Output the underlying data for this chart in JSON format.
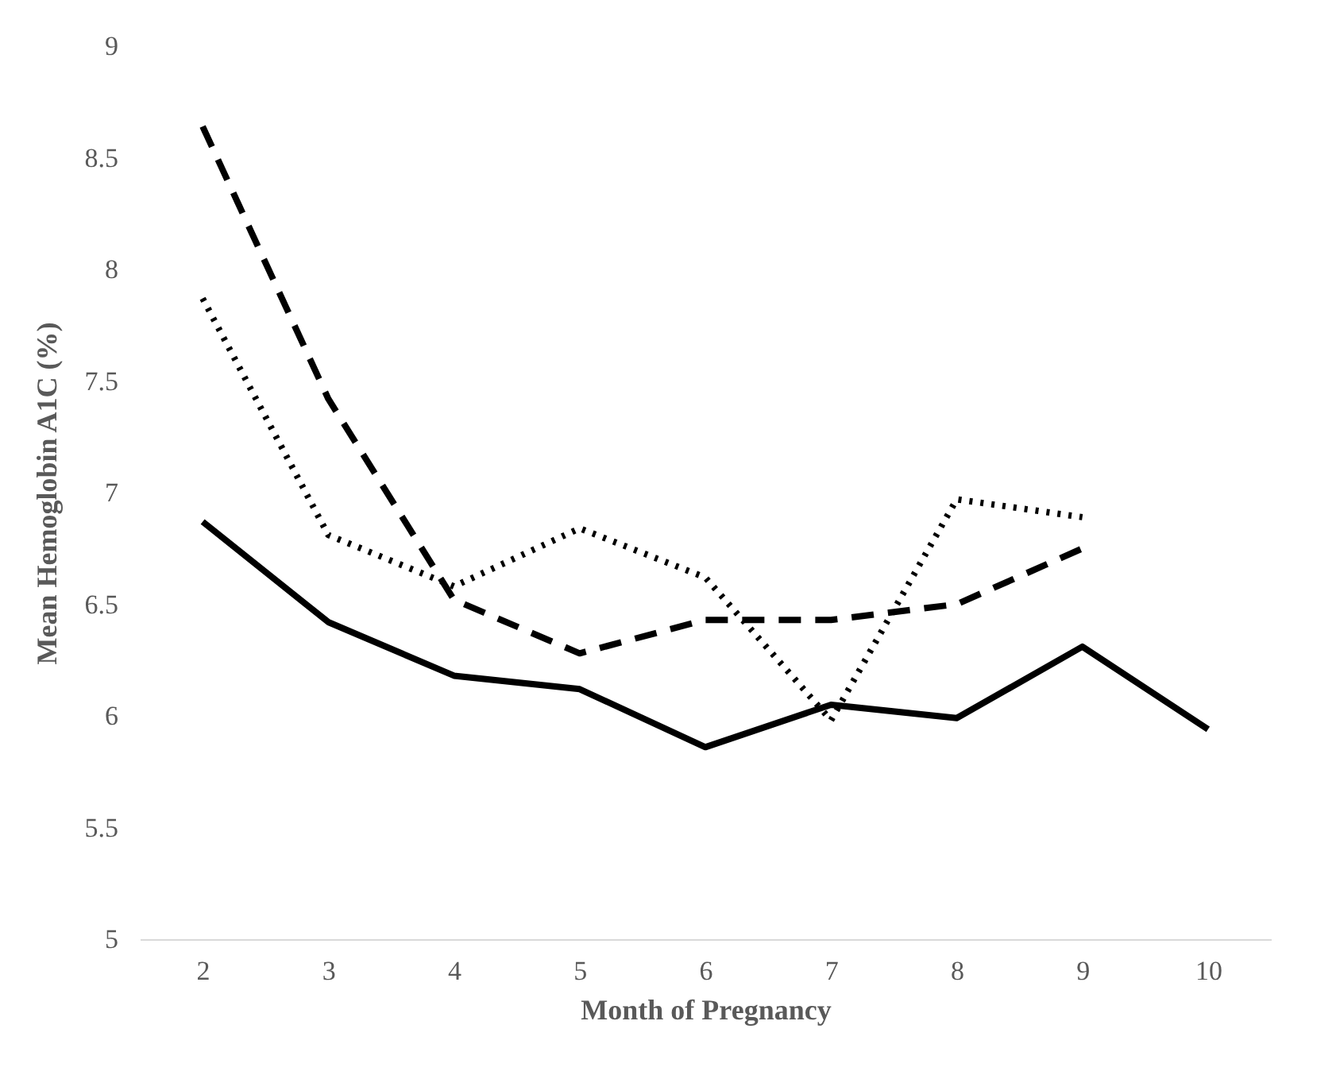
{
  "chart_data": {
    "type": "line",
    "xlabel": "Month of Pregnancy",
    "ylabel": "Mean Hemoglobin A1C (%)",
    "categories": [
      "2",
      "3",
      "4",
      "5",
      "6",
      "7",
      "8",
      "9",
      "10"
    ],
    "series": [
      {
        "color": "#000000",
        "line_style": "solid",
        "values": [
          6.87,
          6.42,
          6.18,
          6.12,
          5.86,
          6.05,
          5.99,
          6.31,
          5.94
        ]
      },
      {
        "color": "#000000",
        "line_style": "dashed",
        "values": [
          8.64,
          7.42,
          6.52,
          6.28,
          6.43,
          6.43,
          6.5,
          6.75,
          null
        ]
      },
      {
        "color": "#000000",
        "line_style": "dotted",
        "values": [
          7.87,
          6.81,
          6.58,
          6.84,
          6.62,
          5.98,
          6.97,
          6.89,
          null
        ]
      }
    ],
    "ylim": [
      5,
      9
    ],
    "yticks": [
      5,
      5.5,
      6,
      6.5,
      7,
      7.5,
      8,
      8.5,
      9
    ],
    "grid": false,
    "legend": false,
    "marker": "none"
  }
}
